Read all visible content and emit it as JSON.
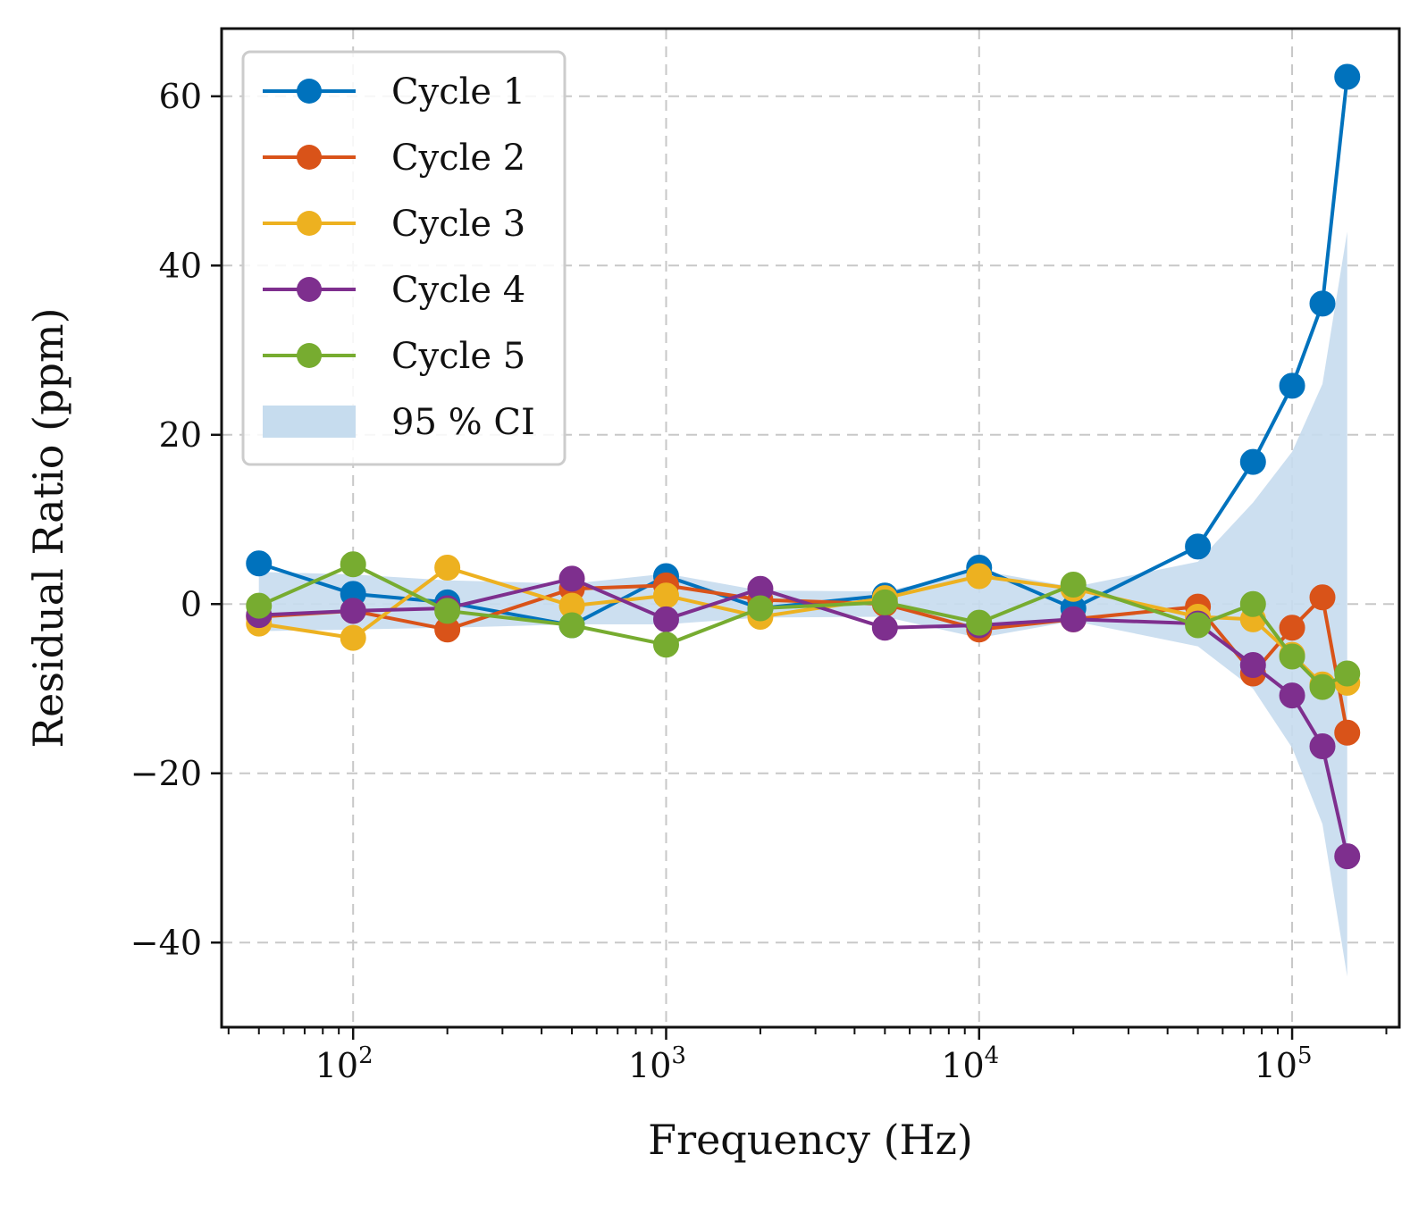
{
  "chart_data": {
    "type": "line",
    "title": "",
    "xlabel": "Frequency (Hz)",
    "ylabel": "Residual Ratio (ppm)",
    "xscale": "log",
    "xlim": [
      38,
      220000
    ],
    "ylim": [
      -50,
      68
    ],
    "yticks": [
      -40,
      -20,
      0,
      20,
      40,
      60
    ],
    "xticks": [
      {
        "value": 100,
        "base": "10",
        "exp": "2"
      },
      {
        "value": 1000,
        "base": "10",
        "exp": "3"
      },
      {
        "value": 10000,
        "base": "10",
        "exp": "4"
      },
      {
        "value": 100000,
        "base": "10",
        "exp": "5"
      }
    ],
    "grid": true,
    "legend_position": "upper-left",
    "x": [
      50,
      100,
      200,
      500,
      1000,
      2000,
      5000,
      10000,
      20000,
      50000,
      75000,
      100000,
      125000,
      150000
    ],
    "series": [
      {
        "name": "Cycle 1",
        "color": "#0072BD",
        "values": [
          4.8,
          1.2,
          0.2,
          -2.5,
          3.3,
          -0.5,
          1.0,
          4.3,
          -0.5,
          6.8,
          16.8,
          25.8,
          35.5,
          62.3
        ]
      },
      {
        "name": "Cycle 2",
        "color": "#D95319",
        "values": [
          -1.5,
          -0.8,
          -3.0,
          1.8,
          2.2,
          0.5,
          0.0,
          -3.0,
          -1.8,
          -0.3,
          -8.2,
          -2.8,
          0.8,
          -15.2
        ]
      },
      {
        "name": "Cycle 3",
        "color": "#EDB120",
        "values": [
          -2.3,
          -4.0,
          4.3,
          -0.2,
          1.0,
          -1.5,
          0.7,
          3.3,
          1.8,
          -1.5,
          -1.8,
          -6.0,
          -9.5,
          -9.3
        ]
      },
      {
        "name": "Cycle 4",
        "color": "#7E2F8E",
        "values": [
          -1.3,
          -0.8,
          -0.5,
          3.0,
          -1.8,
          1.8,
          -2.8,
          -2.5,
          -1.8,
          -2.3,
          -7.2,
          -10.8,
          -16.8,
          -29.8
        ]
      },
      {
        "name": "Cycle 5",
        "color": "#77AC30",
        "values": [
          -0.2,
          4.7,
          -0.8,
          -2.5,
          -4.8,
          -0.5,
          0.2,
          -2.2,
          2.3,
          -2.5,
          0.0,
          -6.2,
          -9.8,
          -8.2
        ]
      }
    ],
    "confidence_band": {
      "name": "95 % CI",
      "color": "#C6DCEE",
      "x": [
        50,
        100,
        200,
        500,
        1000,
        2000,
        5000,
        10000,
        20000,
        50000,
        75000,
        100000,
        125000,
        150000
      ],
      "lower": [
        -3.2,
        -3.0,
        -2.8,
        -2.4,
        -2.4,
        -1.6,
        -1.5,
        -4.0,
        -2.0,
        -5.0,
        -10.0,
        -17.0,
        -26.0,
        -44.0
      ],
      "upper": [
        3.8,
        3.5,
        2.8,
        2.4,
        3.6,
        1.6,
        1.5,
        4.0,
        2.0,
        5.0,
        12.0,
        18.0,
        26.0,
        44.0
      ]
    }
  }
}
